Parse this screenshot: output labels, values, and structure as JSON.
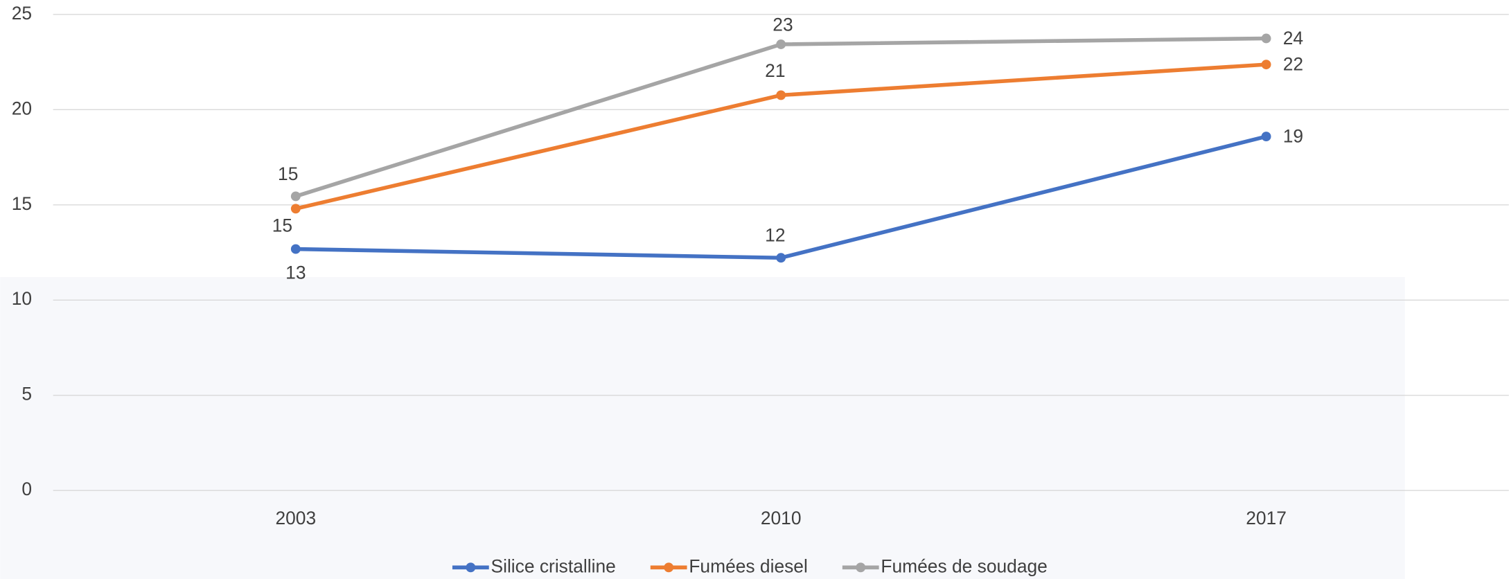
{
  "chart_data": {
    "type": "line",
    "categories": [
      "2003",
      "2010",
      "2017"
    ],
    "series": [
      {
        "name": "Silice cristalline",
        "color": "#4472c4",
        "values": [
          12.68,
          12.22,
          18.59
        ],
        "value_labels": [
          "13",
          "12",
          "19"
        ]
      },
      {
        "name": "Fumées diesel",
        "color": "#ed7d31",
        "values": [
          14.8,
          20.76,
          22.37
        ],
        "value_labels": [
          "15",
          "21",
          "22"
        ]
      },
      {
        "name": "Fumées de soudage",
        "color": "#a5a5a5",
        "values": [
          15.45,
          23.43,
          23.74
        ],
        "value_labels": [
          "15",
          "23",
          "24"
        ]
      }
    ],
    "ylim": [
      0,
      25
    ],
    "yticks": [
      0,
      5,
      10,
      15,
      20,
      25
    ],
    "grid": true,
    "legend": "bottom"
  }
}
